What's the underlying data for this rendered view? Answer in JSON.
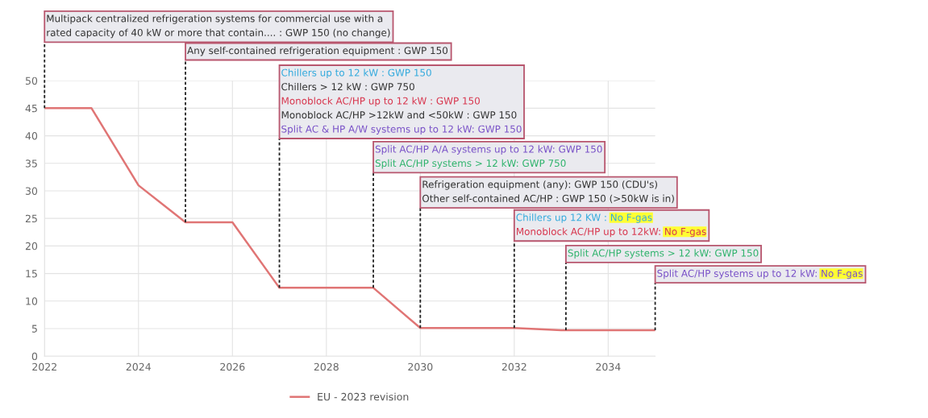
{
  "chart_data": {
    "type": "line",
    "x": [
      2022,
      2023,
      2024,
      2025,
      2026,
      2027,
      2028,
      2029,
      2030,
      2031,
      2032,
      2033,
      2034,
      2035
    ],
    "series": [
      {
        "name": "EU - 2023 revision",
        "color": "#e07575",
        "values": [
          45,
          45,
          31,
          24.3,
          24.3,
          12.4,
          12.4,
          12.4,
          5.1,
          5.1,
          5.1,
          4.7,
          4.7,
          4.7
        ]
      }
    ],
    "xlim": [
      2022,
      2035
    ],
    "xticks": [
      2022,
      2024,
      2026,
      2028,
      2030,
      2032,
      2034
    ],
    "ylim": [
      0,
      50
    ],
    "yticks": [
      0,
      5,
      10,
      15,
      20,
      25,
      30,
      35,
      40,
      45,
      50
    ],
    "grid": true,
    "legend": "bottom",
    "marker": "none",
    "line_style": "solid",
    "ref_lines": [
      {
        "axis": "x",
        "value": 2022,
        "color": "#222222",
        "line_style": "dashed"
      },
      {
        "axis": "x",
        "value": 2025,
        "color": "#222222",
        "line_style": "dashed"
      },
      {
        "axis": "x",
        "value": 2027,
        "color": "#222222",
        "line_style": "dashed"
      },
      {
        "axis": "x",
        "value": 2029,
        "color": "#222222",
        "line_style": "dashed"
      },
      {
        "axis": "x",
        "value": 2030,
        "color": "#222222",
        "line_style": "dashed"
      },
      {
        "axis": "x",
        "value": 2032,
        "color": "#222222",
        "line_style": "dashed"
      },
      {
        "axis": "x",
        "value": 2033.1,
        "color": "#222222",
        "line_style": "dashed"
      },
      {
        "axis": "x",
        "value": 2035,
        "color": "#222222",
        "line_style": "dashed"
      }
    ],
    "annotations": [
      "Multipack centralized refrigeration systems for commercial use with a",
      "rated capacity of 40 kW or more that contain.... : GWP 150 (no change)",
      "Any self-contained refrigeration equipment : GWP 150",
      "Chillers up to 12 kW : GWP 150",
      "Chillers > 12 kW : GWP 750",
      "Monoblock AC/HP up to 12 kW : GWP 150",
      "Monoblock AC/HP >12kW and <50kW : GWP 150",
      "Split AC & HP A/W systems up to 12 kW: GWP 150",
      "Split AC/HP A/A systems up to 12 kW: GWP 150",
      "Split AC/HP systems > 12 kW: GWP 750",
      "Refrigeration equipment (any): GWP 150 (CDU's)",
      "Other self-contained AC/HP : GWP 150 (>50kW is in)",
      "Chillers up 12 KW : No F-gas",
      "Monoblock AC/HP up to 12kW: No F-gas",
      "Split AC/HP systems > 12 kW: GWP 150",
      "Split AC/HP systems up to 12 kW: No F-gas"
    ]
  }
}
